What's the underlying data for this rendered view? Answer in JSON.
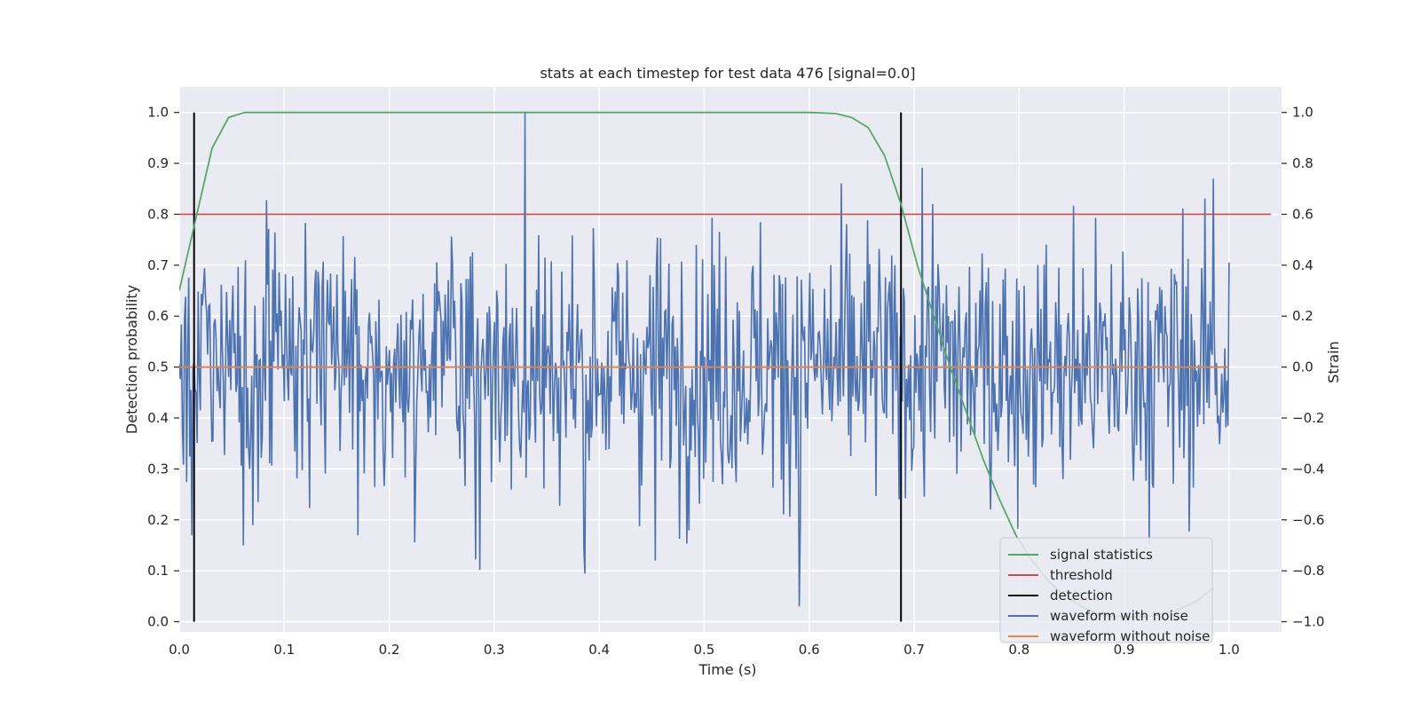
{
  "chart_data": {
    "type": "line",
    "title": "stats at each timestep for test data 476 [signal=0.0]",
    "xlabel": "Time (s)",
    "ylabel": "Detection probability",
    "y2label": "Strain",
    "xlim": [
      0.0,
      1.05
    ],
    "ylim": [
      -0.02,
      1.05
    ],
    "y2lim": [
      -1.04,
      1.1
    ],
    "xticks": [
      "0.0",
      "0.1",
      "0.2",
      "0.3",
      "0.4",
      "0.5",
      "0.6",
      "0.7",
      "0.8",
      "0.9",
      "1.0"
    ],
    "yticks": [
      "0.0",
      "0.1",
      "0.2",
      "0.3",
      "0.4",
      "0.5",
      "0.6",
      "0.7",
      "0.8",
      "0.9",
      "1.0"
    ],
    "y2ticks": [
      "−1.0",
      "−0.8",
      "−0.6",
      "−0.4",
      "−0.2",
      "0.0",
      "0.2",
      "0.4",
      "0.6",
      "0.8",
      "1.0"
    ],
    "grid": true,
    "legend_position": "lower-right",
    "colors": {
      "signal_statistics": "#55a868",
      "threshold": "#c44e52",
      "detection": "#000000",
      "waveform_with_noise": "#4c72b0",
      "waveform_without_noise": "#dd8452",
      "background": "#eaeaf2"
    },
    "series": [
      {
        "name": "signal statistics",
        "axis": "left",
        "x": [
          0.0,
          0.0156,
          0.0313,
          0.0469,
          0.0625,
          0.0781,
          0.1,
          0.2,
          0.3,
          0.4,
          0.5,
          0.6,
          0.625,
          0.6406,
          0.6563,
          0.6719,
          0.6875,
          0.7031,
          0.7188,
          0.7344,
          0.75,
          0.7656,
          0.7813,
          0.7969,
          0.8125,
          0.8281,
          0.8438,
          0.8594,
          0.875,
          0.8906,
          0.9063,
          0.9219,
          0.9375,
          0.9531,
          0.9688,
          0.9844
        ],
        "values": [
          0.65,
          0.79,
          0.93,
          0.99,
          1.0,
          1.0,
          1.0,
          1.0,
          1.0,
          1.0,
          1.0,
          1.0,
          0.998,
          0.99,
          0.97,
          0.915,
          0.82,
          0.7,
          0.6,
          0.5,
          0.41,
          0.32,
          0.24,
          0.17,
          0.12,
          0.08,
          0.05,
          0.03,
          0.015,
          0.01,
          0.01,
          0.01,
          0.015,
          0.025,
          0.04,
          0.065
        ]
      },
      {
        "name": "threshold",
        "axis": "left",
        "x": [
          0.0,
          1.04
        ],
        "values": [
          0.8,
          0.8
        ]
      },
      {
        "name": "detection",
        "axis": "left",
        "events_x": [
          0.0141,
          0.6875
        ],
        "range": [
          0.0,
          1.0
        ]
      },
      {
        "name": "waveform with noise",
        "axis": "right",
        "x_range": [
          0.0,
          1.0
        ],
        "n_points": 1000,
        "std": 0.26,
        "min": -0.94,
        "max": 1.0,
        "note_peaks": [
          [
            0.329,
            1.0
          ],
          [
            0.591,
            -0.94
          ],
          [
            0.453,
            -0.76
          ],
          [
            0.385,
            -0.71
          ],
          [
            0.061,
            -0.7
          ],
          [
            0.012,
            -0.66
          ],
          [
            0.985,
            0.74
          ],
          [
            0.718,
            0.64
          ]
        ]
      },
      {
        "name": "waveform without noise",
        "axis": "right",
        "x": [
          0.0,
          1.0
        ],
        "values": [
          0.0,
          0.0
        ]
      }
    ]
  }
}
